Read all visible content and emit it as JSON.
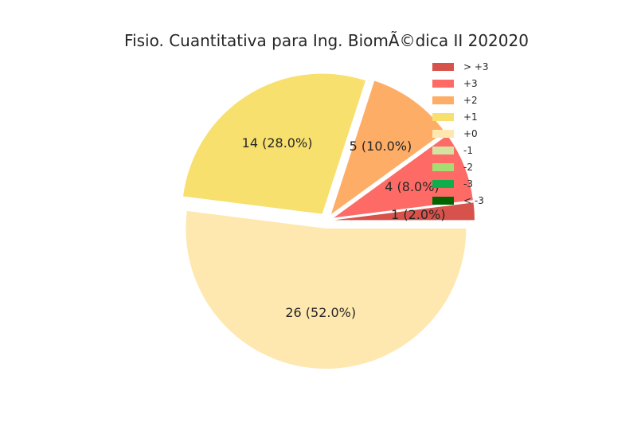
{
  "chart_data": {
    "type": "pie",
    "title": "Fisio. Cuantitativa para Ing. BiomÃ©dica II 202020",
    "legend_placement": "top-right",
    "categories": [
      "> +3",
      "+3",
      "+2",
      "+1",
      "+0",
      "-1",
      "-2",
      "-3",
      "< -3"
    ],
    "values": [
      1,
      4,
      5,
      14,
      26,
      0,
      0,
      0,
      0
    ],
    "labels": [
      "1 (2.0%)",
      "4 (8.0%)",
      "5 (10.0%)",
      "14 (28.0%)",
      "26 (52.0%)",
      "",
      "",
      "",
      ""
    ],
    "colors": [
      "#d6524a",
      "#fe6b66",
      "#fdad66",
      "#f7e06d",
      "#fee8af",
      "#d5e2a2",
      "#a6dd72",
      "#0fad4c",
      "#006400"
    ]
  }
}
